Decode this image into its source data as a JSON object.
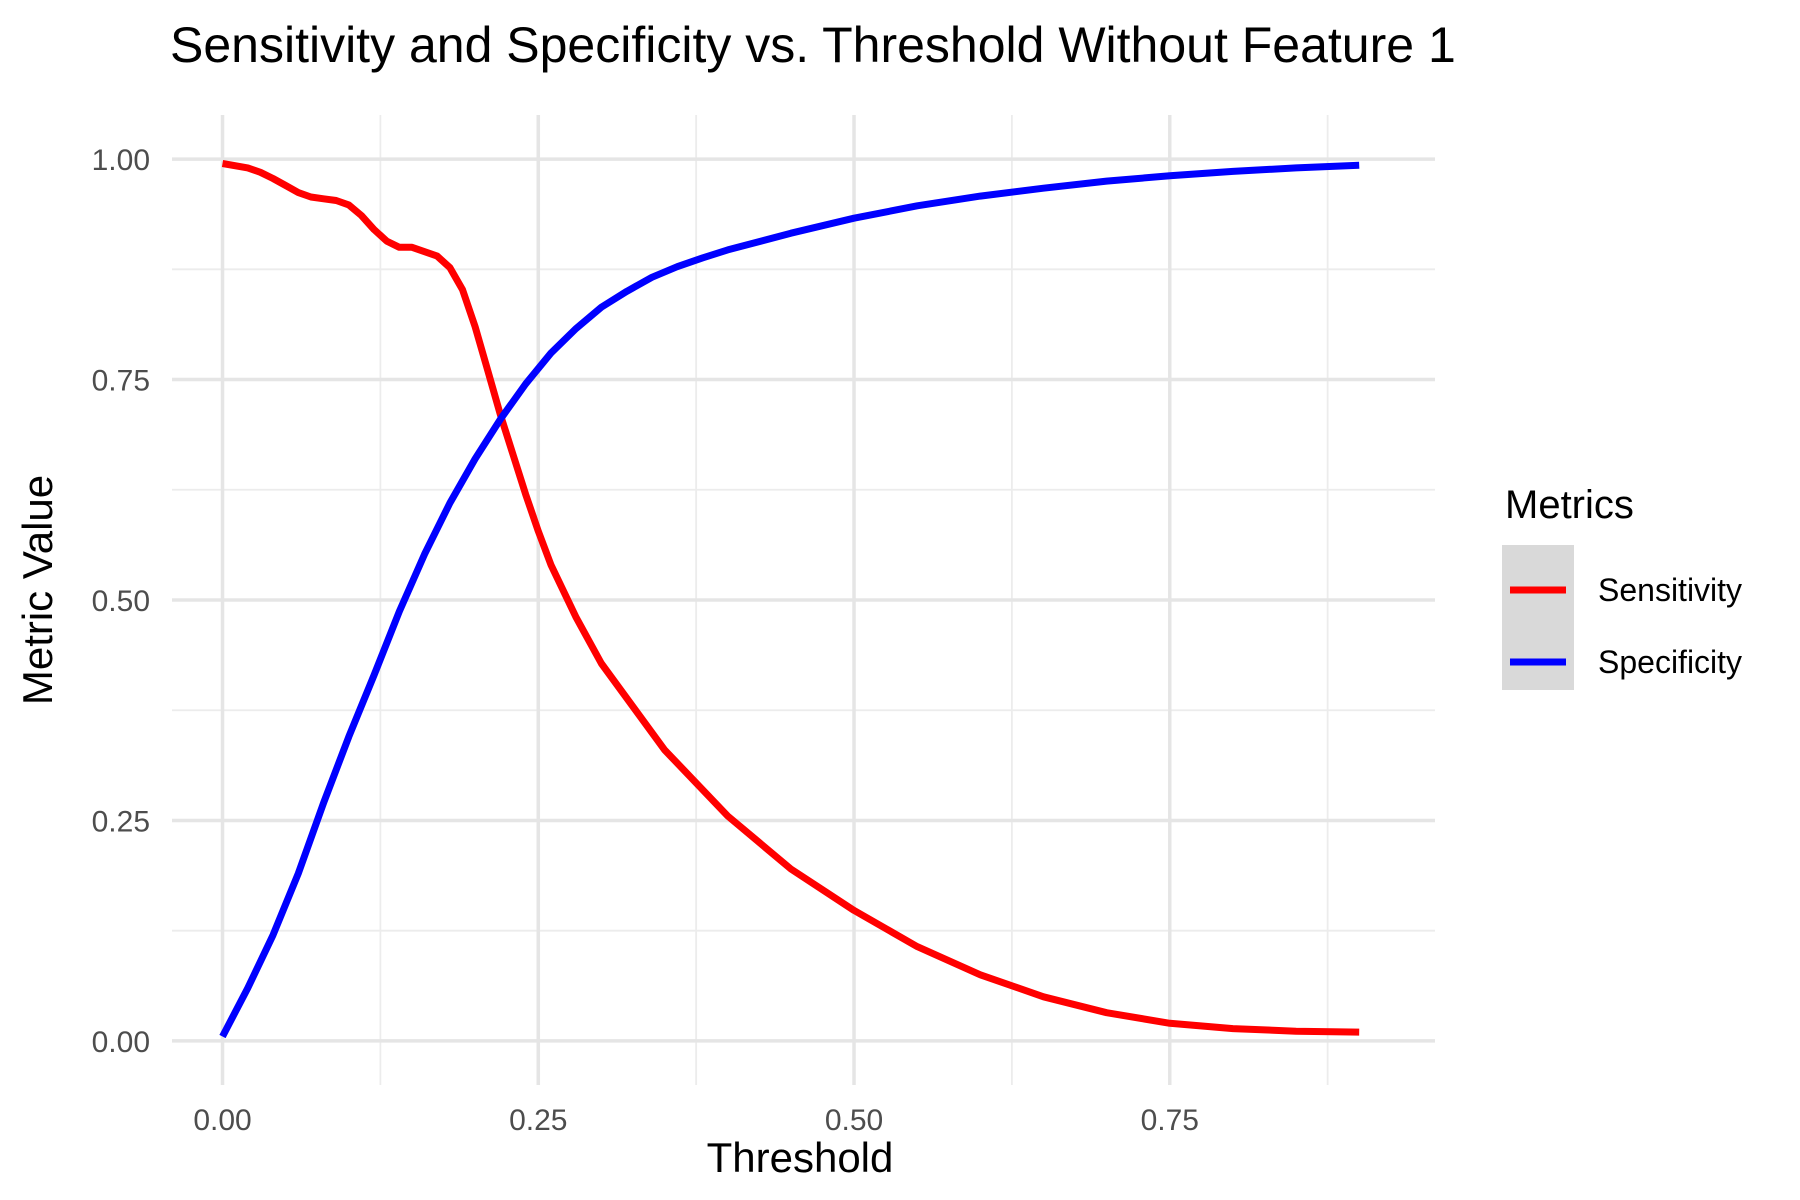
{
  "chart_data": {
    "type": "line",
    "title": "Sensitivity and Specificity vs. Threshold Without Feature 1",
    "xlabel": "Threshold",
    "ylabel": "Metric Value",
    "xlim": [
      -0.04,
      0.96
    ],
    "ylim": [
      -0.05,
      1.05
    ],
    "x_ticks": [
      0.0,
      0.25,
      0.5,
      0.75
    ],
    "x_tick_labels": [
      "0.00",
      "0.25",
      "0.50",
      "0.75"
    ],
    "y_ticks": [
      0.0,
      0.25,
      0.5,
      0.75,
      1.0
    ],
    "y_tick_labels": [
      "0.00",
      "0.25",
      "0.50",
      "0.75",
      "1.00"
    ],
    "x_minor_ticks": [
      0.125,
      0.375,
      0.625,
      0.875
    ],
    "y_minor_ticks": [
      0.125,
      0.375,
      0.625,
      0.875
    ],
    "grid": true,
    "legend": {
      "title": "Metrics",
      "position": "right",
      "key_background": "#d9d9d9"
    },
    "series": [
      {
        "name": "Sensitivity",
        "color": "#ff0000",
        "points": [
          [
            0.0,
            0.995
          ],
          [
            0.02,
            0.99
          ],
          [
            0.03,
            0.985
          ],
          [
            0.04,
            0.978
          ],
          [
            0.05,
            0.97
          ],
          [
            0.06,
            0.962
          ],
          [
            0.07,
            0.957
          ],
          [
            0.08,
            0.955
          ],
          [
            0.09,
            0.953
          ],
          [
            0.1,
            0.948
          ],
          [
            0.11,
            0.936
          ],
          [
            0.12,
            0.92
          ],
          [
            0.13,
            0.907
          ],
          [
            0.14,
            0.9
          ],
          [
            0.15,
            0.9
          ],
          [
            0.16,
            0.895
          ],
          [
            0.17,
            0.89
          ],
          [
            0.18,
            0.877
          ],
          [
            0.19,
            0.852
          ],
          [
            0.2,
            0.81
          ],
          [
            0.21,
            0.76
          ],
          [
            0.22,
            0.71
          ],
          [
            0.23,
            0.665
          ],
          [
            0.24,
            0.62
          ],
          [
            0.25,
            0.578
          ],
          [
            0.26,
            0.54
          ],
          [
            0.28,
            0.48
          ],
          [
            0.3,
            0.428
          ],
          [
            0.35,
            0.33
          ],
          [
            0.4,
            0.255
          ],
          [
            0.45,
            0.195
          ],
          [
            0.5,
            0.148
          ],
          [
            0.55,
            0.107
          ],
          [
            0.6,
            0.075
          ],
          [
            0.65,
            0.05
          ],
          [
            0.7,
            0.032
          ],
          [
            0.75,
            0.02
          ],
          [
            0.8,
            0.014
          ],
          [
            0.85,
            0.011
          ],
          [
            0.9,
            0.01
          ]
        ]
      },
      {
        "name": "Specificity",
        "color": "#0000ff",
        "points": [
          [
            0.0,
            0.005
          ],
          [
            0.02,
            0.06
          ],
          [
            0.04,
            0.12
          ],
          [
            0.06,
            0.19
          ],
          [
            0.08,
            0.27
          ],
          [
            0.1,
            0.345
          ],
          [
            0.12,
            0.415
          ],
          [
            0.14,
            0.487
          ],
          [
            0.16,
            0.552
          ],
          [
            0.18,
            0.61
          ],
          [
            0.2,
            0.66
          ],
          [
            0.22,
            0.705
          ],
          [
            0.24,
            0.745
          ],
          [
            0.26,
            0.78
          ],
          [
            0.28,
            0.808
          ],
          [
            0.3,
            0.832
          ],
          [
            0.32,
            0.85
          ],
          [
            0.34,
            0.866
          ],
          [
            0.36,
            0.878
          ],
          [
            0.38,
            0.888
          ],
          [
            0.4,
            0.897
          ],
          [
            0.45,
            0.916
          ],
          [
            0.5,
            0.933
          ],
          [
            0.55,
            0.947
          ],
          [
            0.6,
            0.958
          ],
          [
            0.65,
            0.967
          ],
          [
            0.7,
            0.975
          ],
          [
            0.75,
            0.981
          ],
          [
            0.8,
            0.986
          ],
          [
            0.85,
            0.99
          ],
          [
            0.9,
            0.993
          ]
        ]
      }
    ]
  }
}
